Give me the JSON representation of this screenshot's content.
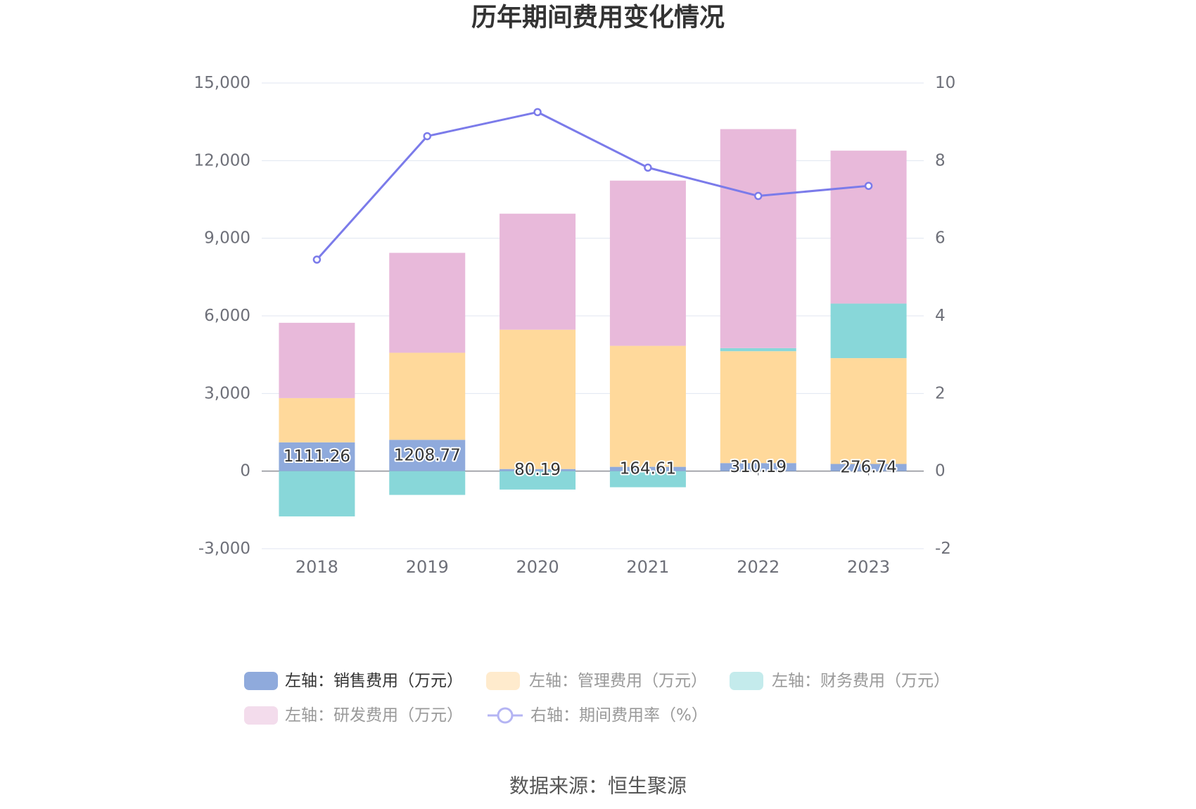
{
  "source": "数据来源：恒生聚源",
  "chart_data": {
    "type": "bar",
    "title": "历年期间费用变化情况",
    "stacked": true,
    "categories": [
      "2018",
      "2019",
      "2020",
      "2021",
      "2022",
      "2023"
    ],
    "y_left": {
      "ylim": [
        -3000,
        15000
      ],
      "ticks": [
        -3000,
        0,
        3000,
        6000,
        9000,
        12000,
        15000
      ],
      "tick_labels": [
        "-3,000",
        "0",
        "3,000",
        "6,000",
        "9,000",
        "12,000",
        "15,000"
      ]
    },
    "y_right": {
      "ylim": [
        -2,
        10
      ],
      "ticks": [
        -2,
        0,
        2,
        4,
        6,
        8,
        10
      ],
      "tick_labels": [
        "-2",
        "0",
        "2",
        "4",
        "6",
        "8",
        "10"
      ]
    },
    "grid": true,
    "legend_position": "bottom",
    "series": [
      {
        "name": "左轴：销售费用（万元）",
        "type": "bar",
        "axis": "left",
        "color": "#8FAADC",
        "legend_swatch_color": "#8FAADC",
        "legend_text_color": "#333333",
        "values": [
          1111.26,
          1208.77,
          80.19,
          164.61,
          310.19,
          276.74
        ],
        "data_labels": [
          "1111.26",
          "1208.77",
          "80.19",
          "164.61",
          "310.19",
          "276.74"
        ]
      },
      {
        "name": "左轴：管理费用（万元）",
        "type": "bar",
        "axis": "left",
        "color": "#FFD99B",
        "legend_swatch_color": "#FFEBCD",
        "legend_text_color": "#999999",
        "values": [
          1710,
          3365,
          5385,
          4677,
          4324,
          4090
        ]
      },
      {
        "name": "左轴：财务费用（万元）",
        "type": "bar",
        "axis": "left",
        "color": "#88D7D9",
        "legend_swatch_color": "#C4EBEC",
        "legend_text_color": "#999999",
        "values": [
          -1752,
          -921,
          -713,
          -624,
          119,
          2108
        ]
      },
      {
        "name": "左轴：研发费用（万元）",
        "type": "bar",
        "axis": "left",
        "color": "#E8B9DA",
        "legend_swatch_color": "#F3DCEC",
        "legend_text_color": "#999999",
        "values": [
          2911,
          3862,
          4485,
          6386,
          8465,
          5911
        ]
      },
      {
        "name": "右轴：期间费用率（%）",
        "type": "line",
        "axis": "right",
        "color": "#7B7BEA",
        "legend_swatch_color": "#B4B4F3",
        "legend_text_color": "#999999",
        "values": [
          5.45,
          8.63,
          9.25,
          7.82,
          7.09,
          7.35
        ]
      }
    ]
  }
}
